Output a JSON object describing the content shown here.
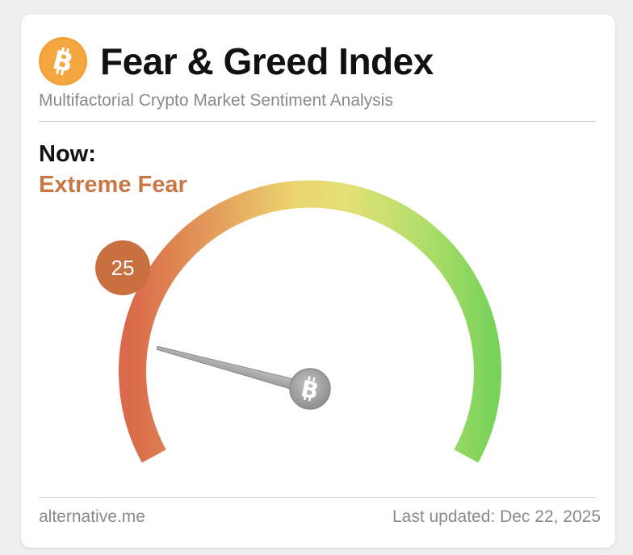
{
  "header": {
    "title": "Fear & Greed Index",
    "subtitle": "Multifactorial Crypto Market Sentiment Analysis",
    "logo_icon": "bitcoin-icon"
  },
  "reading": {
    "now_label": "Now:",
    "status": "Extreme Fear",
    "value": "25",
    "scale_min": 0,
    "scale_max": 100
  },
  "footer": {
    "source": "alternative.me",
    "last_updated": "Last updated: Dec 22, 2025"
  },
  "colors": {
    "accent": "#c97845",
    "bubble": "#c8703f",
    "fear_red": "#d9694a",
    "neutral_yellow": "#e9dd74",
    "greed_green": "#79d35a",
    "bitcoin_orange": "#f1a137",
    "needle_gray": "#a8a8a8"
  }
}
